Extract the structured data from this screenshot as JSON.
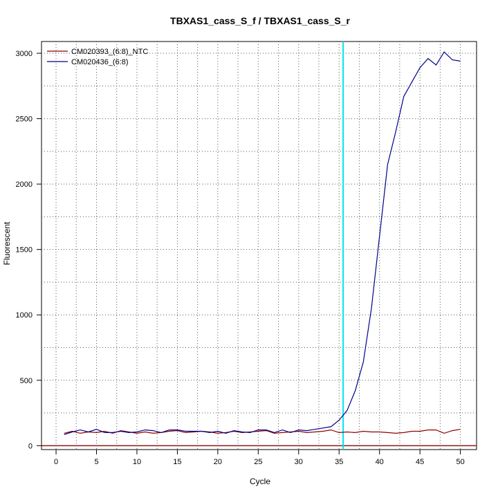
{
  "chart_data": {
    "type": "line",
    "title": "TBXAS1_cass_S_f / TBXAS1_cass_S_r",
    "xlabel": "Cycle",
    "ylabel": "Fluorescent",
    "xlim": [
      -1.8,
      52
    ],
    "ylim": [
      -30,
      3090
    ],
    "xticks": [
      0,
      5,
      10,
      15,
      20,
      25,
      30,
      35,
      40,
      45,
      50
    ],
    "yticks": [
      0,
      500,
      1000,
      1500,
      2000,
      2500,
      3000
    ],
    "grid": true,
    "legend_position": "top-left",
    "threshold": {
      "cycle": 35.5,
      "color": "#00e5ee"
    },
    "baseline": {
      "y": 0,
      "color": "#8b1a1a"
    },
    "x": [
      1,
      2,
      3,
      4,
      5,
      6,
      7,
      8,
      9,
      10,
      11,
      12,
      13,
      14,
      15,
      16,
      17,
      18,
      19,
      20,
      21,
      22,
      23,
      24,
      25,
      26,
      27,
      28,
      29,
      30,
      31,
      32,
      33,
      34,
      35,
      36,
      37,
      38,
      39,
      40,
      41,
      42,
      43,
      44,
      45,
      46,
      47,
      48,
      49,
      50
    ],
    "series": [
      {
        "name": "CM020393_(6:8)_NTC",
        "color": "#8b0000",
        "values": [
          95,
          110,
          95,
          105,
          100,
          110,
          95,
          115,
          105,
          95,
          105,
          95,
          100,
          110,
          115,
          100,
          105,
          110,
          105,
          95,
          100,
          110,
          100,
          105,
          110,
          115,
          95,
          100,
          105,
          110,
          100,
          105,
          110,
          120,
          100,
          105,
          100,
          110,
          105,
          105,
          100,
          95,
          100,
          110,
          110,
          120,
          120,
          95,
          115,
          125
        ]
      },
      {
        "name": "CM020436_(6:8)",
        "color": "#00008b",
        "values": [
          85,
          105,
          120,
          105,
          125,
          100,
          100,
          110,
          100,
          105,
          120,
          115,
          100,
          120,
          120,
          110,
          110,
          110,
          100,
          110,
          95,
          115,
          105,
          100,
          120,
          120,
          100,
          120,
          100,
          120,
          115,
          125,
          135,
          145,
          195,
          270,
          420,
          640,
          1050,
          1600,
          2150,
          2400,
          2670,
          2780,
          2890,
          2960,
          2910,
          3010,
          2950,
          2940
        ]
      }
    ]
  }
}
